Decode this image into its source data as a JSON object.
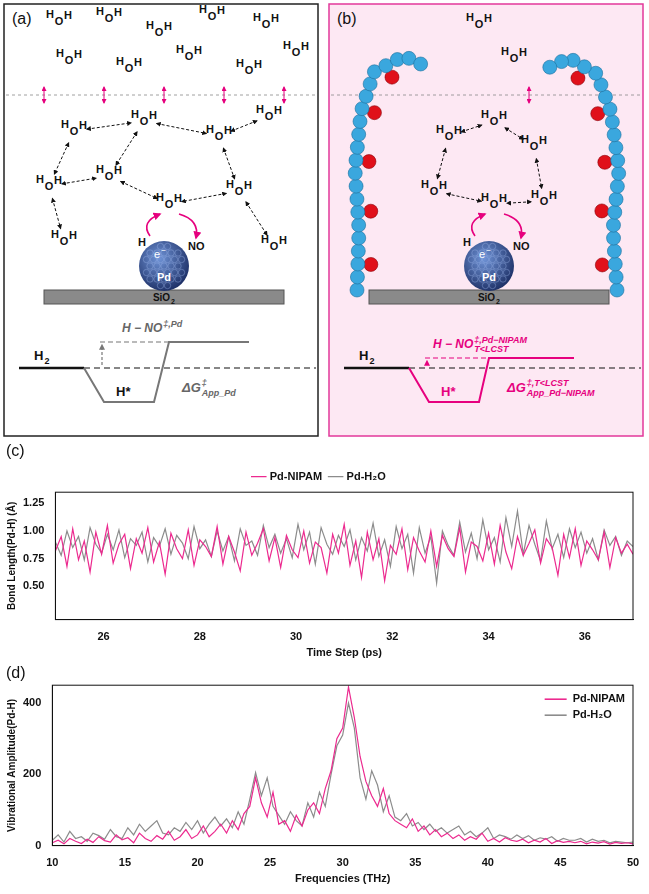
{
  "diagram": {
    "panels": [
      {
        "letter": "(a)",
        "water": {
          "o": "O",
          "h": "H"
        },
        "particle": "Pd",
        "substrate": {
          "text": "SiO",
          "sub": "2"
        },
        "electron": {
          "text": "e",
          "sup": "−"
        },
        "adsorbate_h": "H",
        "adsorbate": "NO",
        "initial": {
          "text": "H",
          "sub": "2"
        },
        "intermediate": "H*",
        "transition": {
          "text": "H − NO",
          "sup": "‡,Pd"
        },
        "barrier": {
          "text": "ΔG",
          "sup": "‡",
          "sub": "App_Pd"
        }
      },
      {
        "letter": "(b)",
        "water": {
          "o": "O",
          "h": "H"
        },
        "particle": "Pd",
        "substrate": {
          "text": "SiO",
          "sub": "2"
        },
        "electron": {
          "text": "e",
          "sup": "−"
        },
        "adsorbate_h": "H",
        "adsorbate": "NO",
        "initial": {
          "text": "H",
          "sub": "2"
        },
        "intermediate": "H*",
        "transition": {
          "text": "H − NO",
          "sup": "‡,Pd−NIPAM",
          "sub": "T<LCST"
        },
        "barrier": {
          "text": "ΔG",
          "sup": "‡,T<LCST",
          "sub": "App_Pd−NIPAM"
        }
      }
    ]
  },
  "chart_data": [
    {
      "type": "line",
      "title": "(c)",
      "x_label": "Time Step (ps)",
      "y_label": "Bond Length(Pd-H) (Å)",
      "xlim": [
        25,
        37
      ],
      "xticks": [
        26,
        28,
        30,
        32,
        34,
        36
      ],
      "ylim": [
        0.2,
        1.35
      ],
      "yticks": [
        {
          "value": 0.5,
          "label": "0.50"
        },
        {
          "value": 0.75,
          "label": "0.75"
        },
        {
          "value": 1,
          "label": "1.00"
        },
        {
          "value": 1.25,
          "label": "1.25"
        }
      ],
      "grid": false,
      "legend": "top",
      "x": [
        25,
        25.12,
        25.24,
        25.36,
        25.48,
        25.6,
        25.72,
        25.84,
        25.96,
        26.08,
        26.2,
        26.32,
        26.44,
        26.56,
        26.68,
        26.8,
        26.92,
        27.04,
        27.16,
        27.28,
        27.4,
        27.52,
        27.64,
        27.76,
        27.88,
        28,
        28.12,
        28.24,
        28.36,
        28.48,
        28.6,
        28.72,
        28.84,
        28.96,
        29.08,
        29.2,
        29.32,
        29.44,
        29.56,
        29.68,
        29.8,
        29.92,
        30.04,
        30.16,
        30.28,
        30.4,
        30.52,
        30.64,
        30.76,
        30.88,
        31,
        31.12,
        31.24,
        31.36,
        31.48,
        31.6,
        31.72,
        31.84,
        31.96,
        32.08,
        32.2,
        32.32,
        32.44,
        32.56,
        32.68,
        32.8,
        32.92,
        33.04,
        33.16,
        33.28,
        33.4,
        33.52,
        33.64,
        33.76,
        33.88,
        34,
        34.12,
        34.24,
        34.36,
        34.48,
        34.6,
        34.72,
        34.84,
        34.96,
        35.08,
        35.2,
        35.32,
        35.44,
        35.56,
        35.68,
        35.8,
        35.92,
        36.04,
        36.16,
        36.28,
        36.4,
        36.52,
        36.64,
        36.76,
        36.88,
        37
      ],
      "series": [
        {
          "name": "Pd-NIPAM",
          "color": "#ec2a8f",
          "values": [
            0.82,
            0.95,
            0.68,
            1.02,
            0.74,
            0.91,
            0.63,
            0.99,
            0.79,
            1.05,
            0.71,
            0.88,
            0.97,
            0.66,
            0.93,
            0.8,
            1.03,
            0.72,
            0.9,
            0.61,
            0.98,
            0.84,
            0.75,
            1.01,
            0.69,
            0.92,
            0.86,
            0.77,
            1.04,
            0.7,
            0.95,
            0.81,
            0.64,
            0.99,
            0.78,
            0.89,
            1.02,
            0.73,
            0.94,
            0.67,
            0.96,
            0.83,
            0.76,
            1.0,
            0.71,
            0.9,
            0.85,
            0.62,
            0.97,
            0.8,
            1.06,
            0.69,
            0.91,
            0.58,
            0.99,
            0.74,
            0.93,
            0.55,
            0.87,
            0.79,
            1.02,
            0.65,
            0.94,
            0.82,
            0.72,
            1.0,
            0.68,
            0.96,
            0.84,
            0.77,
            1.03,
            0.63,
            0.9,
            0.86,
            0.73,
            0.98,
            0.7,
            1.05,
            0.81,
            0.66,
            0.95,
            0.78,
            0.89,
            1.01,
            0.71,
            0.93,
            0.85,
            0.6,
            0.97,
            0.76,
            1.02,
            0.69,
            0.91,
            0.83,
            0.74,
            0.99,
            0.67,
            0.94,
            0.8,
            0.88,
            0.79
          ]
        },
        {
          "name": "Pd-H₂O",
          "color": "#8c8c8c",
          "values": [
            0.9,
            0.78,
            1.0,
            0.85,
            0.95,
            0.74,
            1.03,
            0.88,
            0.8,
            0.97,
            0.83,
            1.01,
            0.76,
            0.93,
            0.87,
            0.99,
            0.72,
            0.94,
            0.86,
            1.02,
            0.79,
            0.96,
            0.89,
            0.75,
            1.04,
            0.84,
            0.92,
            0.77,
            1.0,
            0.82,
            0.95,
            0.73,
            1.02,
            0.87,
            0.91,
            0.78,
            1.05,
            0.85,
            0.97,
            0.8,
            0.93,
            0.76,
            1.06,
            0.83,
            0.99,
            0.7,
            1.03,
            0.88,
            0.79,
            0.96,
            0.86,
            1.01,
            0.74,
            0.94,
            0.82,
            1.07,
            0.77,
            0.92,
            0.68,
            1.04,
            0.84,
            0.97,
            0.62,
            1.03,
            0.8,
            0.95,
            0.53,
            1.0,
            0.87,
            0.78,
            1.08,
            0.81,
            0.98,
            0.75,
            1.1,
            0.83,
            0.94,
            0.72,
            1.12,
            0.86,
            1.18,
            0.79,
            1.05,
            0.88,
            0.73,
            1.09,
            0.84,
            0.97,
            0.76,
            1.02,
            0.85,
            0.99,
            0.8,
            0.93,
            0.74,
            1.01,
            0.87,
            0.95,
            0.78,
            0.91,
            0.86
          ]
        }
      ]
    },
    {
      "type": "line",
      "title": "(d)",
      "x_label": "Frequencies (THz)",
      "y_label": "Vibrational Amplitude(Pd-H)",
      "xlim": [
        10,
        50
      ],
      "xticks": [
        10,
        15,
        20,
        25,
        30,
        35,
        40,
        45,
        50
      ],
      "ylim": [
        0,
        450
      ],
      "yticks": [
        0,
        200,
        400
      ],
      "grid": false,
      "legend": "upper right",
      "x": [
        10,
        10.4,
        10.8,
        11.2,
        11.6,
        12,
        12.4,
        12.8,
        13.2,
        13.6,
        14,
        14.4,
        14.8,
        15.2,
        15.6,
        16,
        16.4,
        16.8,
        17.2,
        17.6,
        18,
        18.4,
        18.8,
        19.2,
        19.6,
        20,
        20.4,
        20.8,
        21.2,
        21.6,
        22,
        22.4,
        22.8,
        23.2,
        23.6,
        24,
        24.4,
        24.8,
        25.2,
        25.6,
        26,
        26.4,
        26.8,
        27.2,
        27.6,
        28,
        28.4,
        28.8,
        29.2,
        29.6,
        30,
        30.4,
        30.8,
        31.2,
        31.6,
        32,
        32.4,
        32.8,
        33.2,
        33.6,
        34,
        34.4,
        34.8,
        35.2,
        35.6,
        36,
        36.4,
        36.8,
        37.2,
        37.6,
        38,
        38.4,
        38.8,
        39.2,
        39.6,
        40,
        40.4,
        40.8,
        41.2,
        41.6,
        42,
        42.4,
        42.8,
        43.2,
        43.6,
        44,
        44.4,
        44.8,
        45.2,
        45.6,
        46,
        46.4,
        46.8,
        47.2,
        47.6,
        48,
        48.4,
        48.8,
        49.2,
        49.6,
        50
      ],
      "series": [
        {
          "name": "Pd-NIPAM",
          "color": "#ec2a8f",
          "values": [
            8,
            15,
            5,
            20,
            12,
            6,
            18,
            9,
            25,
            14,
            10,
            30,
            16,
            22,
            8,
            35,
            20,
            12,
            28,
            18,
            40,
            15,
            25,
            45,
            20,
            30,
            55,
            25,
            40,
            60,
            35,
            70,
            45,
            90,
            110,
            190,
            120,
            80,
            150,
            60,
            70,
            40,
            85,
            55,
            100,
            120,
            90,
            160,
            210,
            300,
            330,
            445,
            360,
            250,
            180,
            140,
            110,
            160,
            90,
            70,
            60,
            50,
            75,
            40,
            55,
            30,
            45,
            25,
            35,
            20,
            30,
            15,
            25,
            18,
            35,
            12,
            20,
            10,
            22,
            15,
            12,
            18,
            8,
            15,
            10,
            20,
            6,
            14,
            9,
            12,
            8,
            12,
            5,
            10,
            7,
            11,
            4,
            9,
            6,
            8,
            5
          ]
        },
        {
          "name": "Pd-H₂O",
          "color": "#8c8c8c",
          "values": [
            15,
            30,
            10,
            40,
            20,
            25,
            12,
            35,
            28,
            18,
            45,
            25,
            20,
            50,
            30,
            60,
            40,
            55,
            70,
            35,
            30,
            50,
            40,
            65,
            45,
            70,
            35,
            60,
            80,
            55,
            75,
            50,
            95,
            60,
            130,
            205,
            140,
            190,
            110,
            85,
            60,
            95,
            70,
            55,
            120,
            80,
            150,
            110,
            200,
            280,
            310,
            400,
            330,
            190,
            130,
            210,
            170,
            95,
            140,
            80,
            70,
            90,
            55,
            65,
            45,
            60,
            40,
            50,
            35,
            45,
            55,
            30,
            40,
            25,
            35,
            50,
            20,
            30,
            25,
            18,
            30,
            20,
            28,
            15,
            22,
            18,
            25,
            12,
            20,
            15,
            15,
            20,
            10,
            18,
            12,
            15,
            8,
            12,
            10,
            8,
            10
          ]
        }
      ]
    }
  ]
}
